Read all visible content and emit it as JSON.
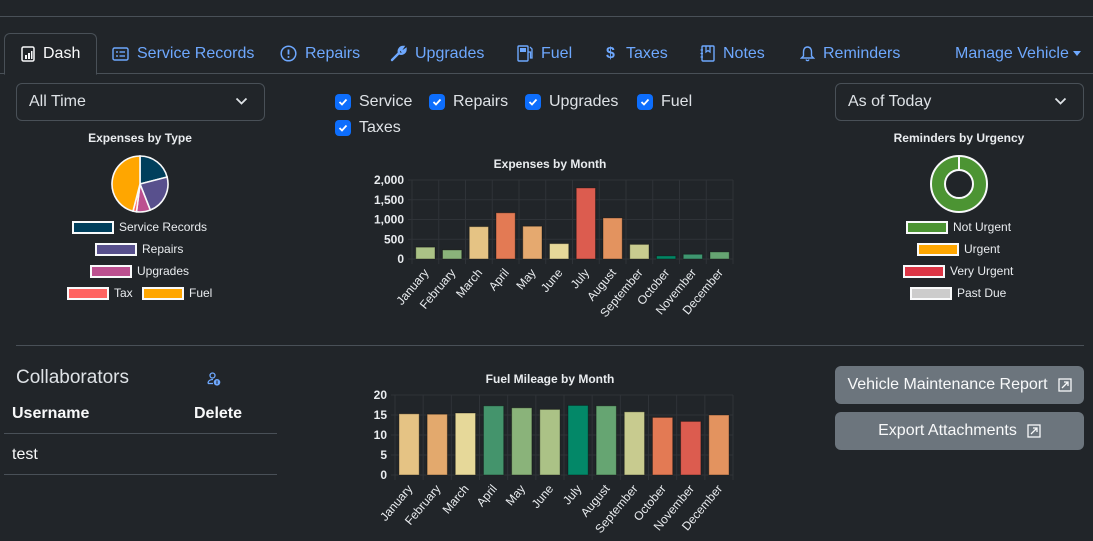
{
  "tabs": [
    {
      "label": "Dash",
      "icon": "dashboard-icon",
      "active": true
    },
    {
      "label": "Service Records",
      "icon": "card-list-icon"
    },
    {
      "label": "Repairs",
      "icon": "exclamation-octagon-icon"
    },
    {
      "label": "Upgrades",
      "icon": "wrench-icon"
    },
    {
      "label": "Fuel",
      "icon": "fuel-pump-icon"
    },
    {
      "label": "Taxes",
      "icon": "dollar-icon"
    },
    {
      "label": "Notes",
      "icon": "journal-icon"
    },
    {
      "label": "Reminders",
      "icon": "bell-icon"
    }
  ],
  "manage_vehicle": {
    "label": "Manage Vehicle"
  },
  "filters": {
    "time_range": "All Time",
    "reminder_range": "As of Today",
    "checkboxes": [
      {
        "label": "Service",
        "checked": true
      },
      {
        "label": "Repairs",
        "checked": true
      },
      {
        "label": "Upgrades",
        "checked": true
      },
      {
        "label": "Fuel",
        "checked": true
      },
      {
        "label": "Taxes",
        "checked": true
      }
    ]
  },
  "collaborators": {
    "title": "Collaborators",
    "headers": [
      "Username",
      "Delete"
    ],
    "rows": [
      {
        "username": "test"
      }
    ]
  },
  "buttons": {
    "report": "Vehicle Maintenance Report",
    "export": "Export Attachments"
  },
  "colors": {
    "accent": "#6ea8fe",
    "checkbox": "#0d6efd",
    "button": "#6c757d",
    "background": "#212529"
  },
  "chart_data": [
    {
      "type": "pie",
      "title": "Expenses by Type",
      "labels": [
        "Service Records",
        "Repairs",
        "Upgrades",
        "Tax",
        "Fuel"
      ],
      "values": [
        21,
        23,
        8,
        2,
        46
      ],
      "colors": [
        "#003f5c",
        "#58508d",
        "#bc5090",
        "#ff6361",
        "#ffa600"
      ]
    },
    {
      "type": "bar",
      "title": "Expenses by Month",
      "categories": [
        "January",
        "February",
        "March",
        "April",
        "May",
        "June",
        "July",
        "August",
        "September",
        "October",
        "November",
        "December"
      ],
      "values": [
        300,
        230,
        820,
        1170,
        830,
        390,
        1800,
        1040,
        370,
        80,
        120,
        180
      ],
      "colors": [
        "#abc286",
        "#8ab37a",
        "#e5c384",
        "#e37a54",
        "#e5a96f",
        "#e6d899",
        "#dc5c4f",
        "#e3935f",
        "#c8cb8f",
        "#038564",
        "#3f9670",
        "#66a572"
      ],
      "ylim": [
        0,
        2000
      ],
      "yticks": [
        "0",
        "500",
        "1,000",
        "1,500",
        "2,000"
      ],
      "ytick_values": [
        0,
        500,
        1000,
        1500,
        2000
      ]
    },
    {
      "type": "pie",
      "title": "Reminders by Urgency",
      "labels": [
        "Not Urgent",
        "Urgent",
        "Very Urgent",
        "Past Due"
      ],
      "values": [
        1,
        0,
        0,
        0
      ],
      "colors": [
        "#4c9433",
        "#ffa600",
        "#dc3545",
        "#cccccc"
      ]
    },
    {
      "type": "bar",
      "title": "Fuel Mileage by Month",
      "categories": [
        "January",
        "February",
        "March",
        "April",
        "May",
        "June",
        "July",
        "August",
        "September",
        "October",
        "November",
        "December"
      ],
      "values": [
        15.3,
        15.2,
        15.5,
        17.3,
        16.8,
        16.4,
        17.4,
        17.3,
        15.8,
        14.4,
        13.4,
        15.0
      ],
      "colors": [
        "#e5c384",
        "#e3a96d",
        "#e6d899",
        "#44946c",
        "#8ab37a",
        "#abc286",
        "#038868",
        "#66a572",
        "#c8cb8f",
        "#e37a54",
        "#dc5c4f",
        "#e3935f"
      ],
      "ylim": [
        0,
        20
      ],
      "yticks": [
        "0",
        "5",
        "10",
        "15",
        "20"
      ],
      "ytick_values": [
        0,
        5,
        10,
        15,
        20
      ]
    }
  ]
}
